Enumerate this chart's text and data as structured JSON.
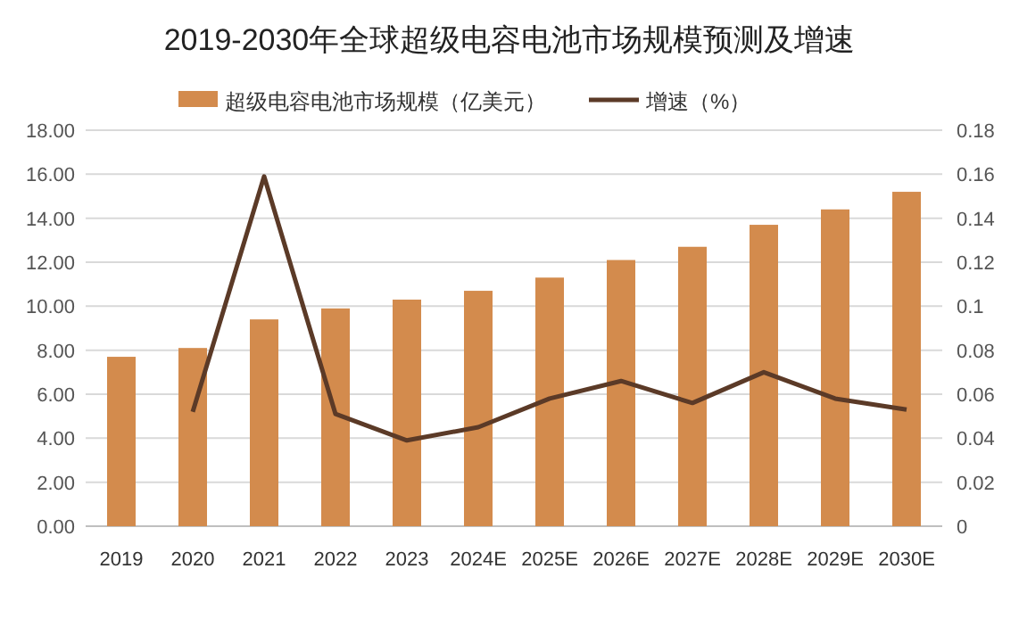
{
  "chart_data": {
    "type": "bar",
    "title": "2019-2030年全球超级电容电池市场规模预测及增速",
    "categories": [
      "2019",
      "2020",
      "2021",
      "2022",
      "2023",
      "2024E",
      "2025E",
      "2026E",
      "2027E",
      "2028E",
      "2029E",
      "2030E"
    ],
    "series": [
      {
        "name": "超级电容电池市场规模（亿美元）",
        "color": "#d38b4d",
        "values": [
          7.7,
          8.1,
          9.4,
          9.9,
          10.3,
          10.7,
          11.3,
          12.1,
          12.7,
          13.7,
          14.4,
          15.2
        ]
      },
      {
        "name": "增速（%）",
        "type": "line",
        "axis": "y2",
        "color": "#5b3a27",
        "values": [
          null,
          0.052,
          0.159,
          0.051,
          0.039,
          0.045,
          0.058,
          0.066,
          0.056,
          0.07,
          0.058,
          0.053
        ]
      }
    ],
    "ylim": [
      0,
      18
    ],
    "yticks": [
      {
        "value": 0,
        "label": "0.00"
      },
      {
        "value": 2,
        "label": "2.00"
      },
      {
        "value": 4,
        "label": "4.00"
      },
      {
        "value": 6,
        "label": "6.00"
      },
      {
        "value": 8,
        "label": "8.00"
      },
      {
        "value": 10,
        "label": "10.00"
      },
      {
        "value": 12,
        "label": "12.00"
      },
      {
        "value": 14,
        "label": "14.00"
      },
      {
        "value": 16,
        "label": "16.00"
      },
      {
        "value": 18,
        "label": "18.00"
      }
    ],
    "y2lim": [
      0,
      0.18
    ],
    "y2ticks": [
      0,
      0.02,
      0.04,
      0.06,
      0.08,
      0.1,
      0.12,
      0.14,
      0.16,
      0.18
    ],
    "grid": "y",
    "legend": "top",
    "marker": "none",
    "line_style": "solid"
  }
}
